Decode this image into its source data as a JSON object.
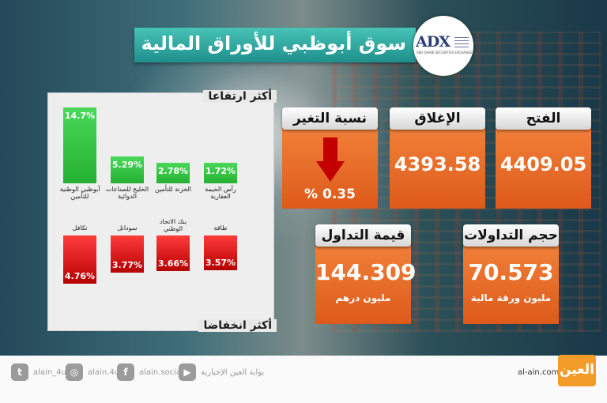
{
  "title": "سوق أبوظبي للأوراق المالية",
  "logo": {
    "mark": "ADX",
    "subtitle": "ABU DHABI SECURITIES EXCHANGE"
  },
  "gainers": {
    "label": "أكثر ارتفاعا",
    "items": [
      {
        "name": "أبوظبي الوطنية للتأمين",
        "value": "14.7%",
        "pct": 14.7
      },
      {
        "name": "الخليج للصناعات الدوائية",
        "value": "5.29%",
        "pct": 5.29
      },
      {
        "name": "الخزنة للتأمين",
        "value": "2.78%",
        "pct": 2.78
      },
      {
        "name": "رأس الخيمة العقارية",
        "value": "1.72%",
        "pct": 1.72
      }
    ]
  },
  "losers": {
    "label": "أكثر انخفاضا",
    "items": [
      {
        "name": "تكافل",
        "value": "4.76%",
        "pct": 4.76
      },
      {
        "name": "سودانل",
        "value": "3.77%",
        "pct": 3.77
      },
      {
        "name": "بنك الاتحاد الوطني",
        "value": "3.66%",
        "pct": 3.66
      },
      {
        "name": "طاقة",
        "value": "3.57%",
        "pct": 3.57
      }
    ]
  },
  "stats": {
    "open": {
      "label": "الفتح",
      "value": "4409.05"
    },
    "close": {
      "label": "الإغلاق",
      "value": "4393.58"
    },
    "change": {
      "label": "نسبة التغير",
      "value": "% 0.35",
      "direction": "down"
    },
    "volume": {
      "label": "حجم التداولات",
      "value": "70.573",
      "unit": "مليون ورقة مالية"
    },
    "turnover": {
      "label": "قيمة التداول",
      "value": "144.309",
      "unit": "مليون درهم"
    }
  },
  "footer": {
    "twitter": "alain_4u",
    "instagram": "alain.4u",
    "facebook": "alain.social",
    "youtube": "بوابة العين الإخبارية",
    "site": "al-ain.com",
    "brand": "العين"
  },
  "colors": {
    "title_bar": "#2aa39c",
    "card": "#e8692a",
    "up": "#2fbf3b",
    "down": "#d10000"
  }
}
